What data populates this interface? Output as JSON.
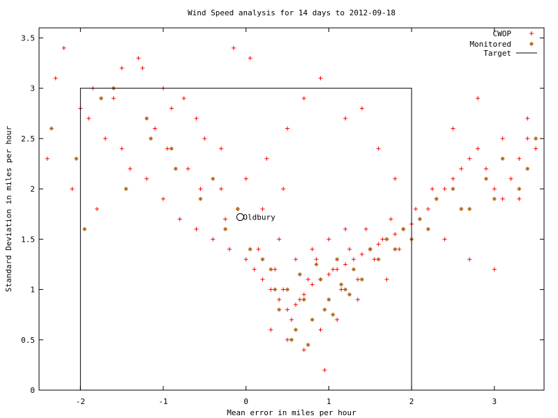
{
  "chart_data": {
    "type": "scatter",
    "title": "Wind Speed analysis for 14 days to 2012-09-18",
    "xlabel": "Mean error in miles per hour",
    "ylabel": "Standard Deviation in miles per hour",
    "xlim": [
      -2.5,
      3.6
    ],
    "ylim": [
      0,
      3.6
    ],
    "x_ticks": [
      -2,
      -1,
      0,
      1,
      2,
      3
    ],
    "y_ticks": [
      0,
      0.5,
      1,
      1.5,
      2,
      2.5,
      3,
      3.5
    ],
    "x_tick_labels": [
      "-2",
      "-1",
      "0",
      "1",
      "2",
      "3"
    ],
    "y_tick_labels": [
      "0",
      "0.5",
      "1",
      "1.5",
      "2",
      "2.5",
      "3",
      "3.5"
    ],
    "grid": false,
    "legend_position": "top-right",
    "series": [
      {
        "name": "CWOP",
        "marker": "plus",
        "color": "#ff0000",
        "x": [
          -2.4,
          -2.3,
          -2.1,
          -1.9,
          -1.8,
          -1.6,
          -1.5,
          -1.3,
          -1.2,
          -1.1,
          -1.0,
          -0.9,
          -0.8,
          -0.7,
          -0.6,
          -0.5,
          -0.4,
          -0.3,
          -0.2,
          -0.1,
          0.0,
          0.1,
          0.2,
          0.3,
          0.4,
          0.5,
          0.6,
          0.7,
          0.8,
          0.9,
          1.0,
          1.1,
          1.2,
          1.3,
          1.4,
          1.5,
          1.6,
          1.7,
          1.8,
          1.9,
          2.0,
          2.1,
          2.2,
          2.3,
          2.4,
          2.5,
          2.6,
          2.7,
          2.8,
          2.9,
          3.0,
          3.1,
          3.2,
          3.3,
          3.4,
          3.5,
          -1.7,
          -1.4,
          -0.95,
          -0.55,
          -0.25,
          0.15,
          0.35,
          0.45,
          0.55,
          0.65,
          0.75,
          0.85,
          0.95,
          1.05,
          1.15,
          1.25,
          1.35,
          1.45,
          1.55,
          1.65,
          1.75,
          1.85,
          2.05,
          2.25,
          0.3,
          0.5,
          0.7,
          0.9,
          1.1,
          0.6,
          0.8,
          1.0,
          1.2,
          0.4,
          0.2,
          0.0,
          -0.3,
          -0.6,
          -1.0,
          -1.5,
          -2.0,
          2.5,
          2.8,
          3.1,
          3.4,
          -2.2,
          -1.85,
          -1.25,
          -0.75,
          0.25,
          0.5,
          0.7,
          0.9,
          1.2,
          1.4,
          1.6,
          1.8,
          2.1,
          2.4,
          2.7,
          3.0,
          3.3,
          -0.15,
          0.05,
          0.45,
          0.95,
          1.35,
          1.7
        ],
        "y": [
          2.3,
          3.1,
          2.0,
          2.7,
          1.8,
          2.9,
          2.4,
          3.3,
          2.1,
          2.6,
          1.9,
          2.8,
          1.7,
          2.2,
          1.6,
          2.5,
          1.5,
          2.0,
          1.4,
          1.8,
          1.3,
          1.2,
          1.1,
          1.0,
          0.9,
          0.8,
          0.85,
          0.95,
          1.05,
          1.1,
          1.15,
          1.2,
          1.25,
          1.3,
          1.35,
          1.4,
          1.45,
          1.5,
          1.55,
          1.6,
          1.65,
          1.7,
          1.8,
          1.9,
          2.0,
          2.1,
          2.2,
          2.3,
          2.4,
          2.2,
          2.0,
          1.9,
          2.1,
          2.3,
          2.5,
          2.4,
          2.5,
          2.2,
          2.4,
          2.0,
          1.7,
          1.4,
          1.2,
          1.0,
          0.7,
          0.9,
          1.1,
          1.3,
          0.8,
          1.2,
          1.0,
          1.4,
          1.1,
          1.6,
          1.3,
          1.5,
          1.7,
          1.4,
          1.8,
          2.0,
          0.6,
          0.5,
          0.4,
          0.6,
          0.7,
          1.3,
          1.4,
          1.5,
          1.6,
          1.5,
          1.8,
          2.1,
          2.4,
          2.7,
          3.0,
          3.2,
          2.8,
          2.6,
          2.9,
          2.5,
          2.7,
          3.4,
          3.0,
          3.2,
          2.9,
          2.3,
          2.6,
          2.9,
          3.1,
          2.7,
          2.8,
          2.4,
          2.1,
          1.7,
          1.5,
          1.3,
          1.2,
          1.9,
          3.4,
          3.3,
          2.0,
          0.2,
          0.9,
          1.1
        ]
      },
      {
        "name": "Monitored",
        "marker": "star",
        "color": "#b06010",
        "x": [
          -2.35,
          -2.05,
          -1.75,
          -1.45,
          -1.15,
          -0.85,
          -0.55,
          -0.25,
          0.05,
          0.3,
          0.5,
          0.7,
          0.9,
          1.1,
          1.3,
          1.5,
          1.7,
          1.9,
          2.1,
          2.3,
          2.5,
          2.7,
          2.9,
          3.1,
          3.3,
          3.5,
          -1.95,
          -1.6,
          -1.2,
          -0.9,
          -0.4,
          -0.1,
          0.2,
          0.4,
          0.6,
          0.8,
          1.0,
          1.2,
          1.4,
          1.6,
          1.8,
          2.0,
          2.2,
          2.6,
          3.0,
          3.4,
          0.55,
          0.75,
          0.95,
          1.15,
          0.35,
          0.65,
          0.85,
          1.05,
          1.25
        ],
        "y": [
          2.6,
          2.3,
          2.9,
          2.0,
          2.5,
          2.2,
          1.9,
          1.6,
          1.4,
          1.2,
          1.0,
          0.9,
          1.1,
          1.3,
          1.2,
          1.4,
          1.5,
          1.6,
          1.7,
          1.9,
          2.0,
          1.8,
          2.1,
          2.3,
          2.0,
          2.5,
          1.6,
          3.0,
          2.7,
          2.4,
          2.1,
          1.8,
          1.3,
          0.8,
          0.6,
          0.7,
          0.9,
          1.0,
          1.1,
          1.3,
          1.4,
          1.5,
          1.6,
          1.8,
          1.9,
          2.2,
          0.5,
          0.45,
          0.8,
          1.05,
          1.0,
          1.15,
          1.25,
          0.75,
          0.95
        ]
      }
    ],
    "target": {
      "name": "Target",
      "box": {
        "x0": -2,
        "x1": 2,
        "y0": 0,
        "y1": 3
      }
    },
    "annotation": {
      "text": "Oldbury",
      "x": -0.07,
      "y": 1.72
    }
  }
}
